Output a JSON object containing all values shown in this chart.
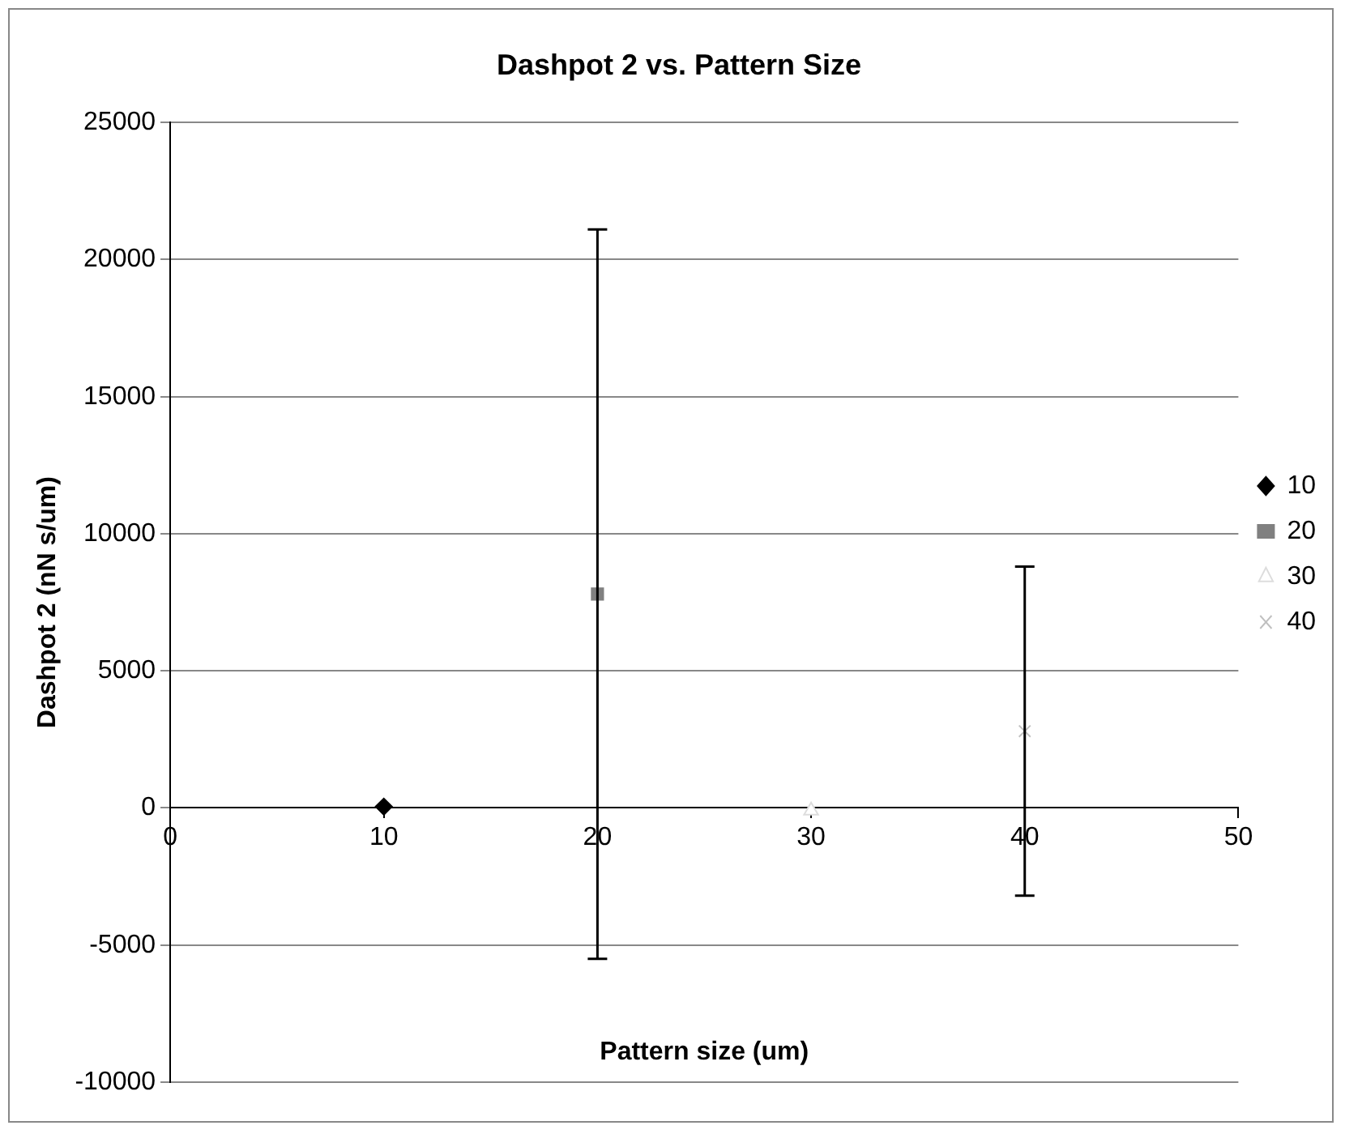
{
  "chart_data": {
    "type": "scatter",
    "title": "Dashpot 2 vs. Pattern Size",
    "xlabel": "Pattern size (um)",
    "ylabel": "Dashpot 2 (nN s/um)",
    "xlim": [
      0,
      50
    ],
    "xticks": [
      0,
      10,
      20,
      30,
      40,
      50
    ],
    "ylim": [
      -10000,
      25000
    ],
    "yticks": [
      -10000,
      -5000,
      0,
      5000,
      10000,
      15000,
      20000,
      25000
    ],
    "grid": "y",
    "legend": "right",
    "series": [
      {
        "name": "10",
        "color": "#000000",
        "marker": "diamond",
        "x": [
          10
        ],
        "values": [
          50
        ]
      },
      {
        "name": "20",
        "color": "#808080",
        "marker": "square",
        "x": [
          20
        ],
        "values": [
          7800
        ],
        "errors": [
          13300
        ]
      },
      {
        "name": "30",
        "color": "#ffffff",
        "marker": "triangle",
        "x": [
          30
        ],
        "values": [
          -100
        ]
      },
      {
        "name": "40",
        "color": "#c0c0c0",
        "marker": "cross",
        "x": [
          40
        ],
        "values": [
          2800
        ],
        "errors": [
          6000
        ]
      }
    ]
  }
}
